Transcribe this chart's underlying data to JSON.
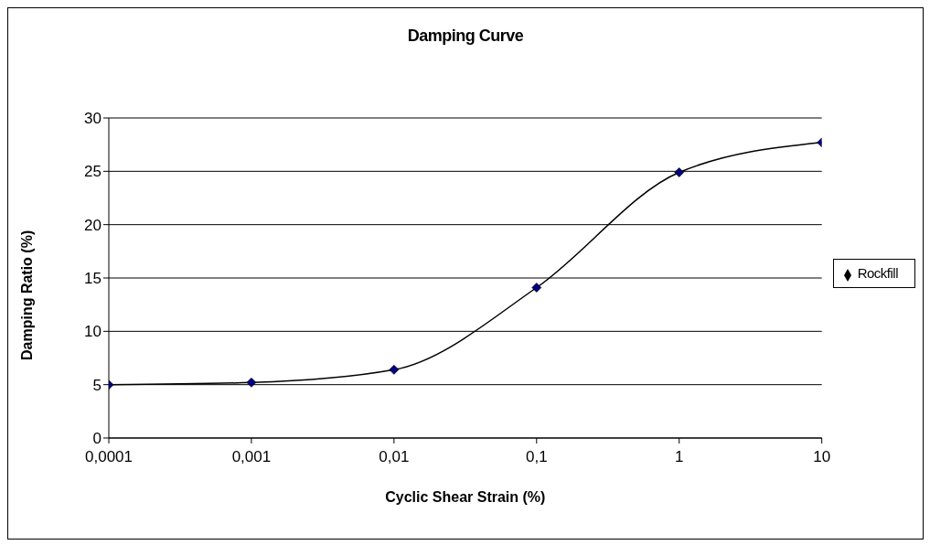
{
  "chart_data": {
    "type": "line",
    "title": "Damping Curve",
    "xlabel": "Cyclic Shear Strain (%)",
    "ylabel": "Damping Ratio (%)",
    "x": [
      0.0001,
      0.001,
      0.01,
      0.1,
      1,
      10
    ],
    "series": [
      {
        "name": "Rockfill",
        "color": "#000080",
        "values": [
          5,
          5.2,
          6.4,
          14.1,
          24.9,
          27.7
        ]
      }
    ],
    "log": "x",
    "xlim": [
      0.0001,
      10
    ],
    "xticks": [
      {
        "value": 0.0001,
        "label": "0,0001"
      },
      {
        "value": 0.001,
        "label": "0,001"
      },
      {
        "value": 0.01,
        "label": "0,01"
      },
      {
        "value": 0.1,
        "label": "0,1"
      },
      {
        "value": 1,
        "label": "1"
      },
      {
        "value": 10,
        "label": "10"
      }
    ],
    "ylim": [
      0,
      30
    ],
    "yticks": [
      0,
      5,
      10,
      15,
      20,
      25,
      30
    ],
    "grid": "y",
    "legend": "right",
    "marker": "diamond",
    "line_style": "solid"
  }
}
